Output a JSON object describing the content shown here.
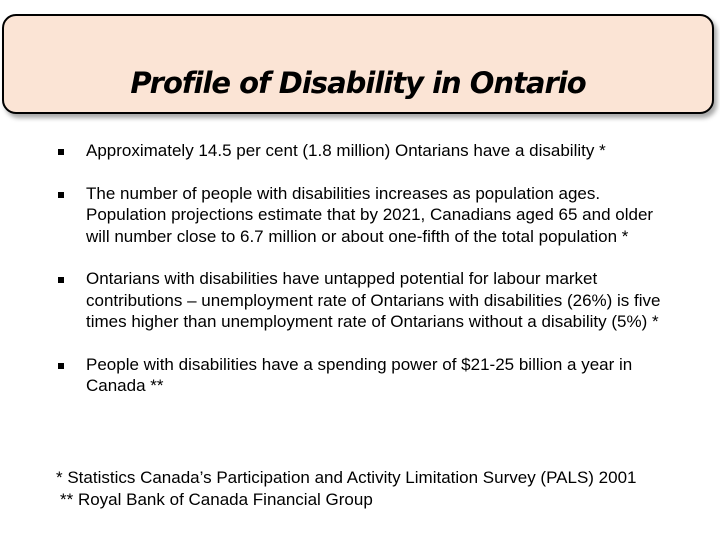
{
  "slide": {
    "title": "Profile of Disability in Ontario",
    "bullets": [
      {
        "text": "Approximately 14.5 per cent (1.8 million) Ontarians have a disability *"
      },
      {
        "text": "The number of people with disabilities increases as population ages. Population projections estimate that by 2021, Canadians aged 65 and older will number close to 6.7 million or about one-fifth of the total population *"
      },
      {
        "text": "Ontarians with disabilities have untapped potential for labour market contributions – unemployment rate of Ontarians with disabilities (26%) is five times higher than unemployment rate of Ontarians without a disability (5%) *"
      },
      {
        "text": "People with disabilities have a spending power of $21-25 billion a year in Canada **"
      }
    ],
    "footnotes": [
      "* Statistics Canada’s Participation and Activity Limitation Survey (PALS) 2001",
      "** Royal Bank of Canada Financial Group"
    ],
    "colors": {
      "title_box_fill": "#fbe4d5",
      "text": "#000000"
    }
  }
}
